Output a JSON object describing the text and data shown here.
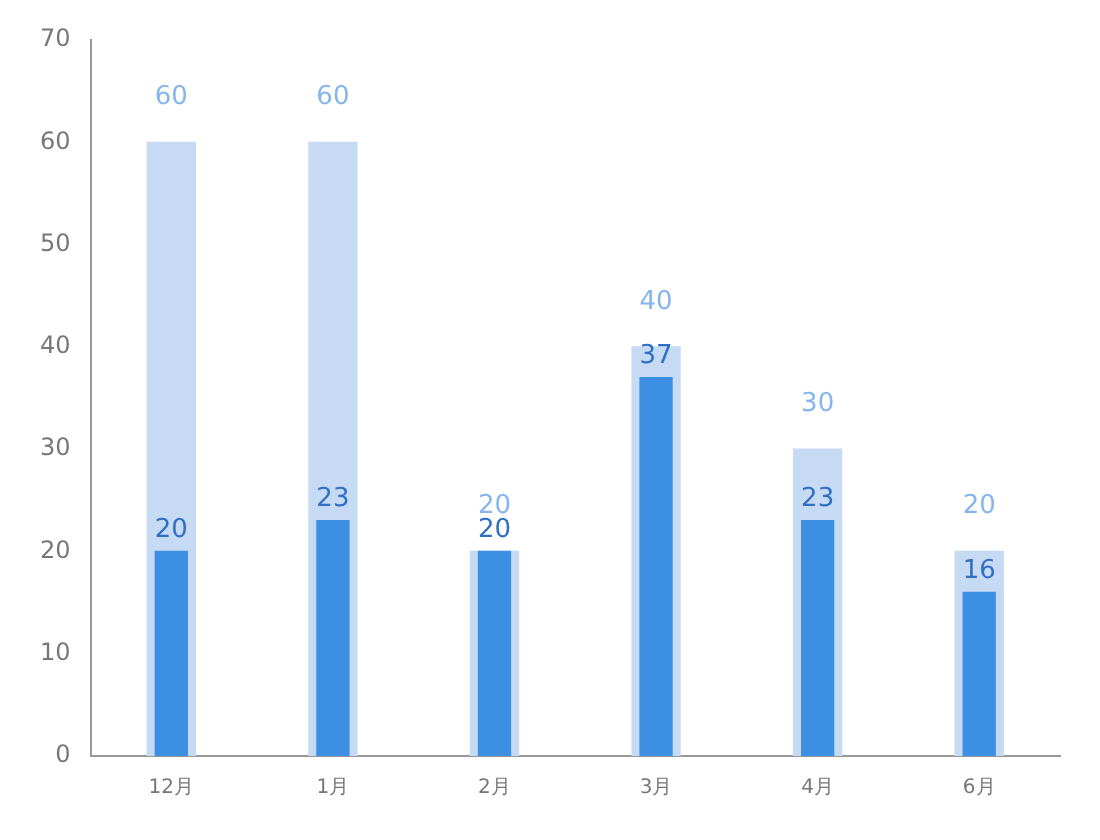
{
  "chart_data": {
    "type": "bar",
    "categories": [
      "12月",
      "1月",
      "2月",
      "3月",
      "4月",
      "6月"
    ],
    "series": [
      {
        "color": "#c7daf4",
        "values": [
          60,
          60,
          20,
          40,
          30,
          20
        ]
      },
      {
        "color": "#3d8fe4",
        "values": [
          20,
          23,
          20,
          37,
          23,
          16
        ]
      }
    ],
    "ylim": [
      0,
      70
    ],
    "yticks": [
      0,
      10,
      20,
      30,
      40,
      50,
      60,
      70
    ],
    "grid": false,
    "legend": false,
    "data_labels": true
  }
}
